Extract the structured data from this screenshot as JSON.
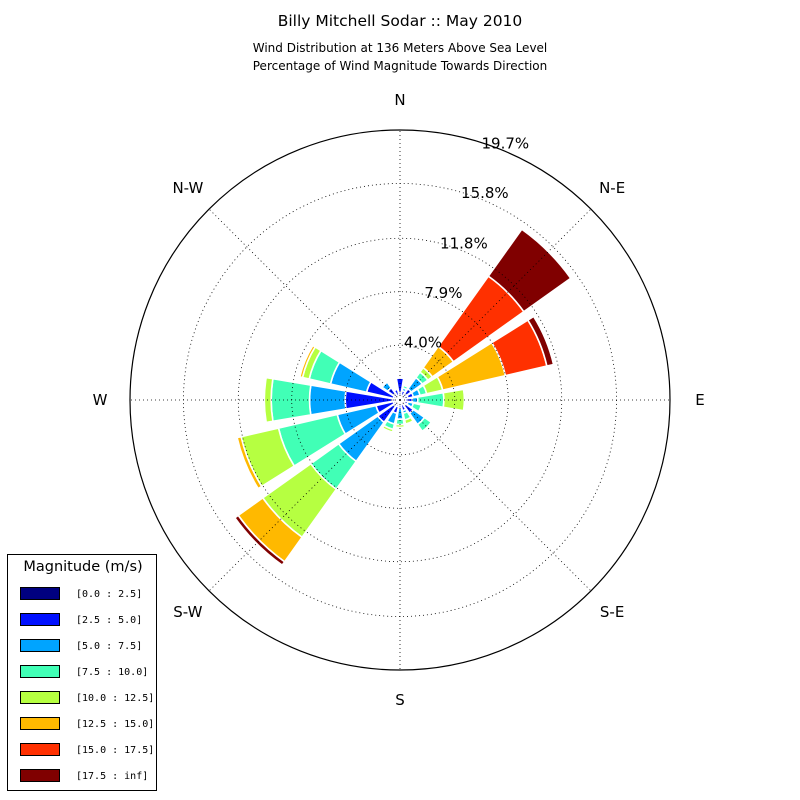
{
  "title": "Billy Mitchell Sodar :: May 2010",
  "subtitle_line1": "Wind Distribution at 136 Meters Above Sea Level",
  "subtitle_line2": "Percentage of Wind Magnitude Towards Direction",
  "chart_data": {
    "type": "windrose",
    "directions": [
      "N",
      "NNE",
      "NE",
      "ENE",
      "E",
      "ESE",
      "SE",
      "SSE",
      "S",
      "SSW",
      "SW",
      "WSW",
      "W",
      "WNW",
      "NW",
      "NNW"
    ],
    "direction_labels": [
      "N",
      "N-E",
      "E",
      "S-E",
      "S",
      "S-W",
      "W",
      "N-W"
    ],
    "radial_ticks": [
      4.0,
      7.9,
      11.8,
      15.8,
      19.7
    ],
    "radial_tick_labels": [
      "4.0%",
      "7.9%",
      "11.8%",
      "15.8%",
      "19.7%"
    ],
    "rmax": 19.7,
    "legend_title": "Magnitude (m/s)",
    "bins": [
      "[0.0 : 2.5]",
      "[2.5 : 5.0]",
      "[5.0 : 7.5]",
      "[7.5 : 10.0]",
      "[10.0 : 12.5]",
      "[12.5 : 15.0]",
      "[15.0 : 17.5]",
      "[17.5 : inf]"
    ],
    "colors": [
      "#000080",
      "#0010ff",
      "#00a4ff",
      "#41ffb6",
      "#b6ff41",
      "#ffb900",
      "#ff3000",
      "#800000"
    ],
    "cumulative": [
      [
        0.6,
        1.6,
        1.6,
        1.6,
        1.6,
        1.6,
        1.6,
        1.6
      ],
      [
        0.3,
        0.7,
        0.9,
        1.1,
        1.2,
        1.2,
        1.2,
        1.2
      ],
      [
        0.6,
        1.0,
        2.0,
        2.5,
        2.9,
        4.8,
        11.1,
        15.3
      ],
      [
        0.6,
        1.0,
        1.5,
        2.0,
        3.2,
        7.9,
        11.0,
        11.5
      ],
      [
        0.4,
        0.9,
        1.3,
        3.2,
        4.7,
        4.7,
        4.7,
        4.7
      ],
      [
        0.2,
        0.6,
        1.0,
        1.6,
        1.6,
        1.6,
        1.6,
        1.6
      ],
      [
        0.5,
        1.2,
        2.2,
        2.8,
        2.8,
        2.8,
        2.8,
        2.8
      ],
      [
        0.3,
        0.8,
        1.0,
        1.5,
        1.8,
        1.8,
        1.8,
        1.8
      ],
      [
        0.2,
        0.6,
        1.4,
        1.8,
        2.0,
        2.0,
        2.0,
        2.0
      ],
      [
        0.5,
        1.0,
        1.8,
        2.2,
        2.4,
        2.4,
        2.4,
        2.4
      ],
      [
        0.6,
        2.0,
        5.5,
        8.0,
        12.3,
        14.5,
        14.5,
        14.8
      ],
      [
        0.5,
        1.8,
        4.7,
        9.1,
        11.9,
        12.2,
        12.2,
        12.2
      ],
      [
        0.6,
        4.0,
        6.6,
        9.4,
        9.9,
        9.9,
        9.9,
        9.9
      ],
      [
        0.5,
        2.5,
        5.2,
        6.8,
        7.3,
        7.5,
        7.5,
        7.5
      ],
      [
        0.6,
        1.1,
        1.6,
        1.6,
        1.6,
        1.6,
        1.6,
        1.6
      ],
      [
        0.3,
        0.8,
        0.9,
        0.9,
        0.9,
        0.9,
        0.9,
        0.9
      ]
    ]
  }
}
